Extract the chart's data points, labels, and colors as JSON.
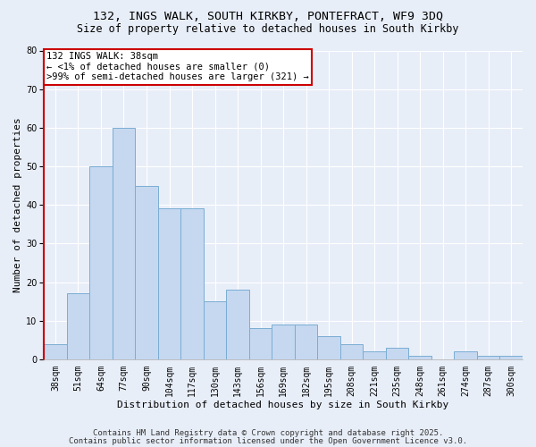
{
  "title1": "132, INGS WALK, SOUTH KIRKBY, PONTEFRACT, WF9 3DQ",
  "title2": "Size of property relative to detached houses in South Kirkby",
  "xlabel": "Distribution of detached houses by size in South Kirkby",
  "ylabel": "Number of detached properties",
  "footnote1": "Contains HM Land Registry data © Crown copyright and database right 2025.",
  "footnote2": "Contains public sector information licensed under the Open Government Licence v3.0.",
  "categories": [
    "38sqm",
    "51sqm",
    "64sqm",
    "77sqm",
    "90sqm",
    "104sqm",
    "117sqm",
    "130sqm",
    "143sqm",
    "156sqm",
    "169sqm",
    "182sqm",
    "195sqm",
    "208sqm",
    "221sqm",
    "235sqm",
    "248sqm",
    "261sqm",
    "274sqm",
    "287sqm",
    "300sqm"
  ],
  "values": [
    4,
    17,
    50,
    60,
    45,
    39,
    39,
    15,
    18,
    8,
    9,
    9,
    6,
    4,
    2,
    3,
    1,
    0,
    2,
    1,
    1
  ],
  "bar_color": "#c5d8f0",
  "bar_edge_color": "#7aadd4",
  "annotation_line1": "132 INGS WALK: 38sqm",
  "annotation_line2": "← <1% of detached houses are smaller (0)",
  "annotation_line3": ">99% of semi-detached houses are larger (321) →",
  "annotation_box_facecolor": "#ffffff",
  "annotation_box_edgecolor": "#cc0000",
  "bg_color": "#e8eef8",
  "plot_bg_color": "#e8eef8",
  "ylim": [
    0,
    80
  ],
  "yticks": [
    0,
    10,
    20,
    30,
    40,
    50,
    60,
    70,
    80
  ],
  "grid_color": "#ffffff",
  "spine_left_color": "#cc0000",
  "title_fontsize": 9.5,
  "subtitle_fontsize": 8.5,
  "axis_label_fontsize": 8,
  "tick_fontsize": 7,
  "annotation_fontsize": 7.5,
  "footnote_fontsize": 6.5
}
